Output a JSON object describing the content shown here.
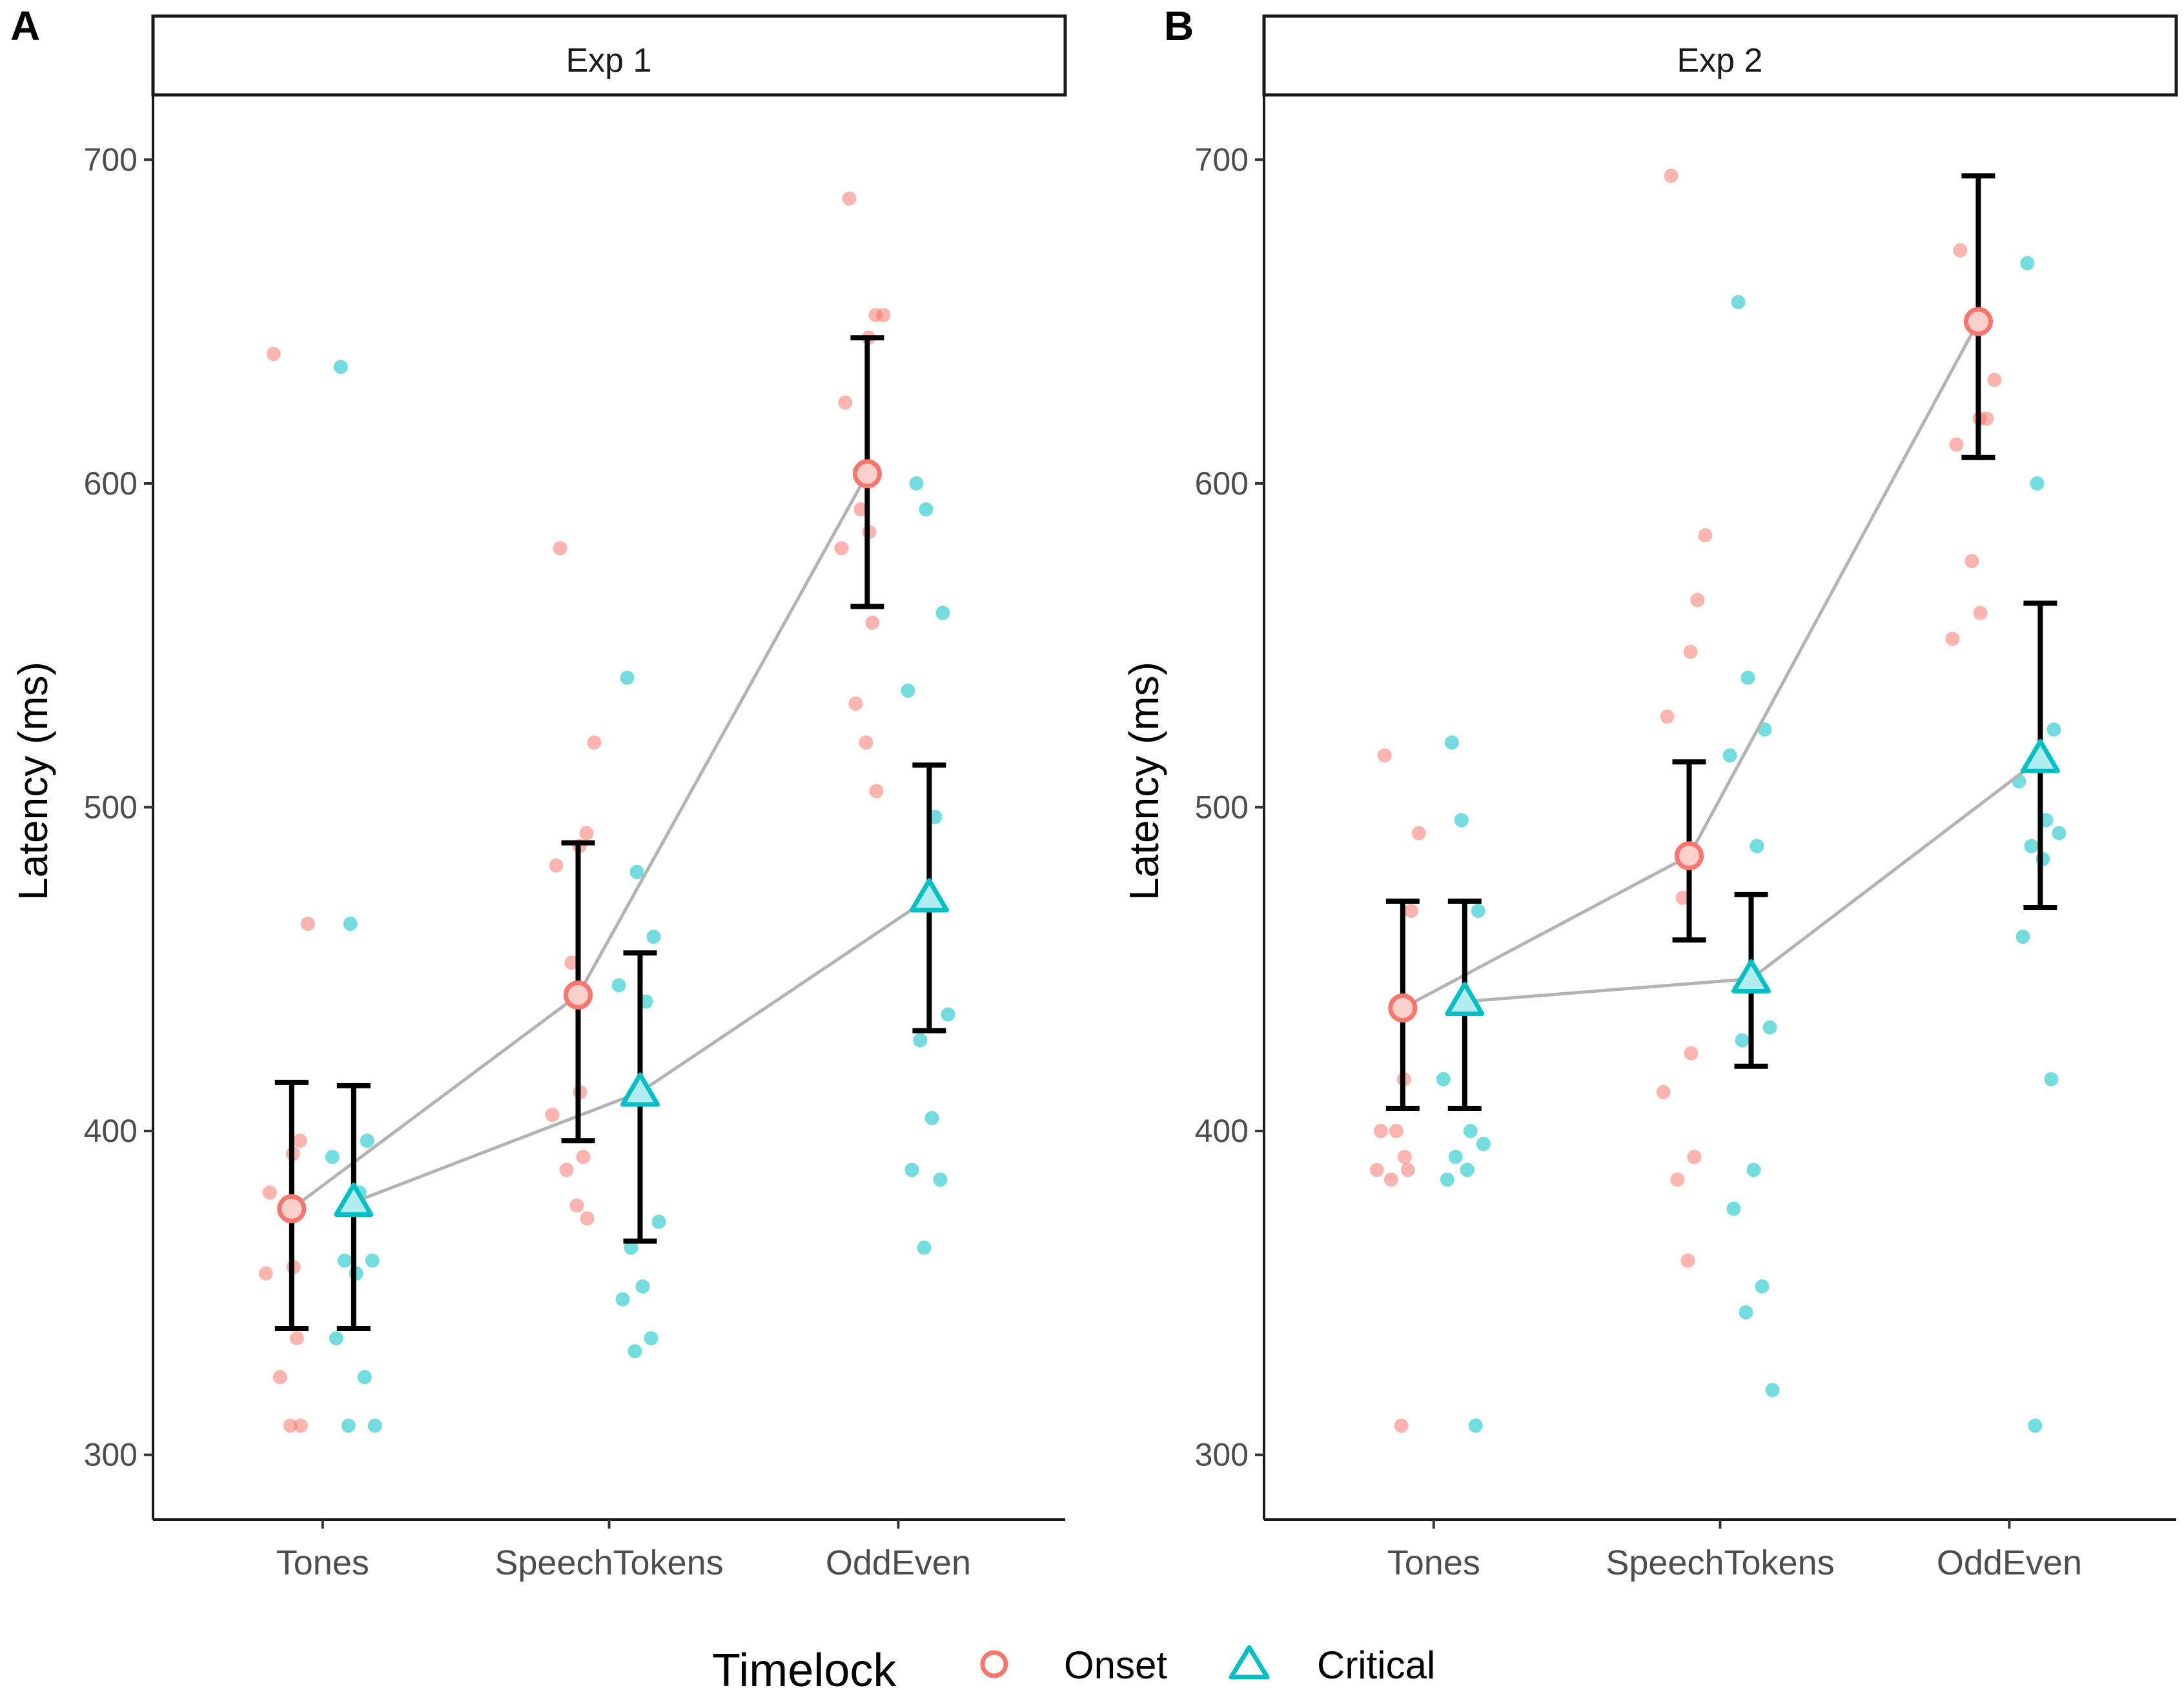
{
  "chart_data": [
    {
      "type": "scatter",
      "panel_label": "A",
      "strip_title": "Exp 1",
      "ylabel": "Latency (ms)",
      "xlabel": "",
      "categories": [
        "Tones",
        "SpeechTokens",
        "OddEven"
      ],
      "yticks": [
        300,
        400,
        500,
        600,
        700
      ],
      "ylim": [
        280,
        720
      ],
      "grid": false,
      "series": [
        {
          "name": "Onset",
          "color": "#F8766D",
          "marker": "circle",
          "means": [
            376,
            442,
            603
          ],
          "err_low": [
            339,
            397,
            562
          ],
          "err_high": [
            415,
            489,
            645
          ],
          "points": [
            [
              640,
              464,
              397,
              393,
              381,
              376,
              358,
              356,
              336,
              324,
              309,
              309
            ],
            [
              580,
              520,
              492,
              488,
              482,
              452,
              412,
              405,
              392,
              388,
              377,
              373
            ],
            [
              688,
              652,
              652,
              645,
              625,
              592,
              585,
              580,
              557,
              532,
              520,
              505
            ]
          ]
        },
        {
          "name": "Critical",
          "color": "#00BFC4",
          "marker": "triangle",
          "means": [
            378,
            412,
            472
          ],
          "err_low": [
            339,
            366,
            431
          ],
          "err_high": [
            414,
            455,
            513
          ],
          "points": [
            [
              636,
              464,
              397,
              392,
              381,
              360,
              360,
              356,
              336,
              324,
              309,
              309
            ],
            [
              540,
              480,
              460,
              445,
              440,
              372,
              364,
              352,
              348,
              336,
              332
            ],
            [
              600,
              592,
              560,
              536,
              497,
              436,
              428,
              404,
              388,
              385,
              364
            ]
          ]
        }
      ]
    },
    {
      "type": "scatter",
      "panel_label": "B",
      "strip_title": "Exp 2",
      "ylabel": "Latency (ms)",
      "xlabel": "",
      "categories": [
        "Tones",
        "SpeechTokens",
        "OddEven"
      ],
      "yticks": [
        300,
        400,
        500,
        600,
        700
      ],
      "ylim": [
        280,
        720
      ],
      "grid": false,
      "series": [
        {
          "name": "Onset",
          "color": "#F8766D",
          "marker": "circle",
          "means": [
            438,
            485,
            650
          ],
          "err_low": [
            407,
            459,
            608
          ],
          "err_high": [
            471,
            514,
            695
          ],
          "points": [
            [
              516,
              492,
              468,
              416,
              400,
              400,
              392,
              388,
              388,
              385,
              309
            ],
            [
              695,
              584,
              564,
              548,
              528,
              472,
              424,
              412,
              392,
              385,
              360
            ],
            [
              672,
              632,
              620,
              620,
              612,
              576,
              560,
              552
            ]
          ]
        },
        {
          "name": "Critical",
          "color": "#00BFC4",
          "marker": "triangle",
          "means": [
            440,
            447,
            515
          ],
          "err_low": [
            407,
            420,
            469
          ],
          "err_high": [
            471,
            473,
            563
          ],
          "points": [
            [
              520,
              496,
              468,
              416,
              400,
              396,
              392,
              388,
              385,
              309
            ],
            [
              656,
              540,
              524,
              516,
              488,
              432,
              428,
              388,
              376,
              352,
              344,
              320
            ],
            [
              668,
              600,
              524,
              508,
              496,
              492,
              488,
              484,
              460,
              416,
              309
            ]
          ]
        }
      ]
    }
  ],
  "legend": {
    "title": "Timelock",
    "items": [
      {
        "label": "Onset",
        "color": "#F8766D",
        "marker": "circle"
      },
      {
        "label": "Critical",
        "color": "#00BFC4",
        "marker": "triangle"
      }
    ]
  }
}
